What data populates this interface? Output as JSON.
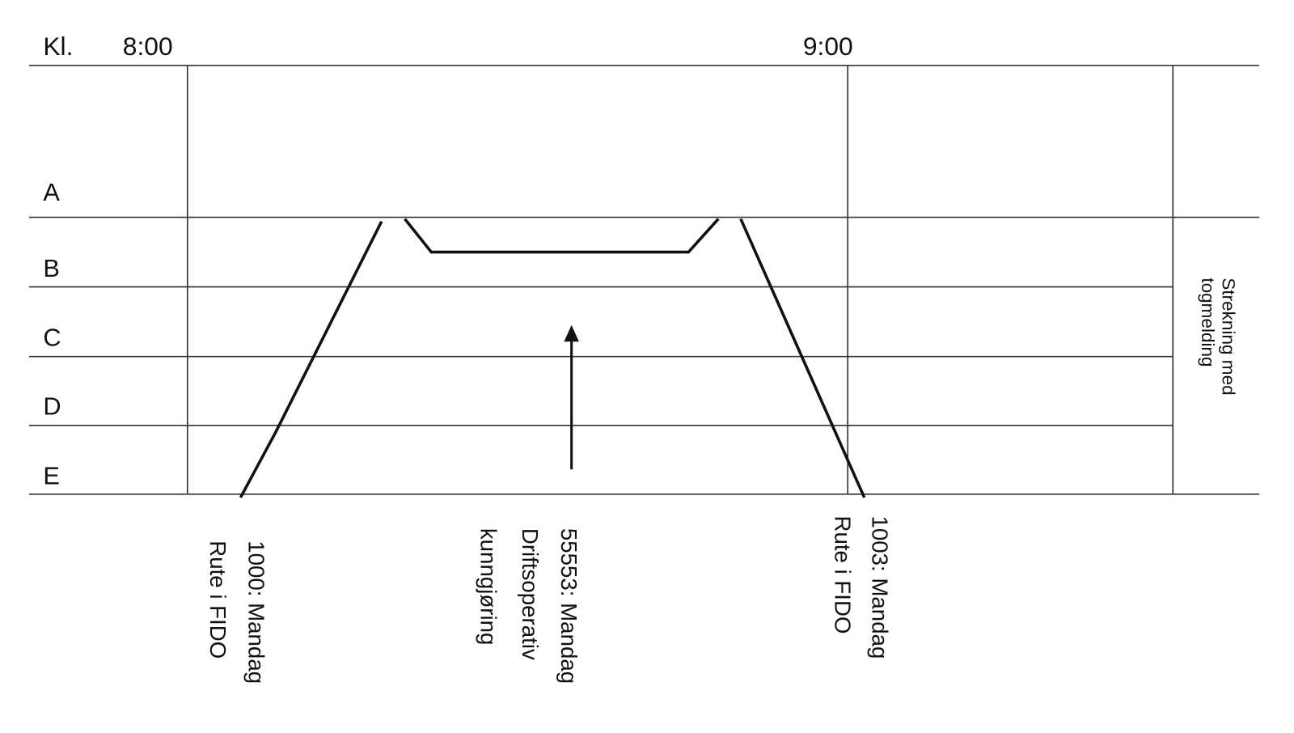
{
  "header": {
    "clock_label": "Kl.",
    "times": [
      "8:00",
      "9:00"
    ]
  },
  "stations": [
    "A",
    "B",
    "C",
    "D",
    "E"
  ],
  "side_label": [
    "Strekning med",
    "togmelding"
  ],
  "trains": [
    {
      "lines": [
        "1000: Mandag",
        "Rute i FIDO"
      ]
    },
    {
      "lines": [
        "55553: Mandag",
        "Driftsoperativ",
        "kunngjøring"
      ]
    },
    {
      "lines": [
        "1003: Mandag",
        "Rute i FIDO"
      ]
    }
  ]
}
